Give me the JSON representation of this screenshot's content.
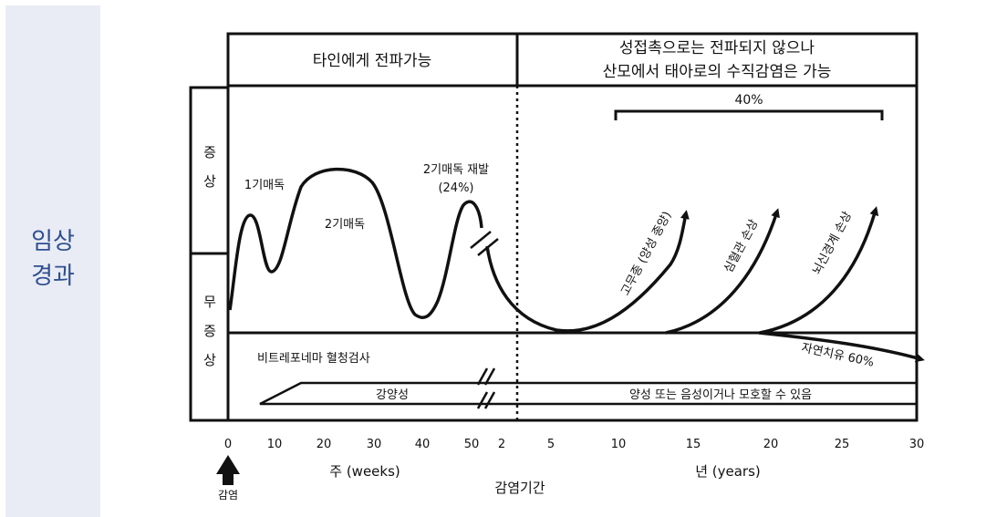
{
  "sidebar": {
    "line1": "임상",
    "line2": "경과"
  },
  "header": {
    "left": "타인에게 전파가능",
    "right_line1": "성접촉으로는 전파되지 않으나",
    "right_line2": "산모에서 태아로의 수직감염은 가능"
  },
  "rows": {
    "symptomatic": [
      "증",
      "상"
    ],
    "asymptomatic": [
      "무",
      "증",
      "상"
    ]
  },
  "curve_labels": {
    "stage1": "1기매독",
    "stage2": "2기매독",
    "relapse_line1": "2기매독 재발",
    "relapse_line2": "(24%)",
    "bracket_percent": "40%",
    "arrow_gumma": "고무종 (양성 종양)",
    "arrow_cardio": "심혈관 손상",
    "arrow_neuro": "뇌신경계 손상",
    "natural_cure": "자연치유 60%"
  },
  "test_row": {
    "title": "비트레포네마 혈청검사",
    "positive": "강양성",
    "later": "양성 또는 음성이거나 모호할 수 있음"
  },
  "axis": {
    "weeks_ticks": [
      "0",
      "10",
      "20",
      "30",
      "40",
      "50"
    ],
    "years_ticks": [
      "2",
      "5",
      "10",
      "15",
      "20",
      "25",
      "30"
    ],
    "weeks_label": "주 (weeks)",
    "years_label": "년 (years)",
    "infection_label": "감염",
    "period_label": "감염기간"
  }
}
